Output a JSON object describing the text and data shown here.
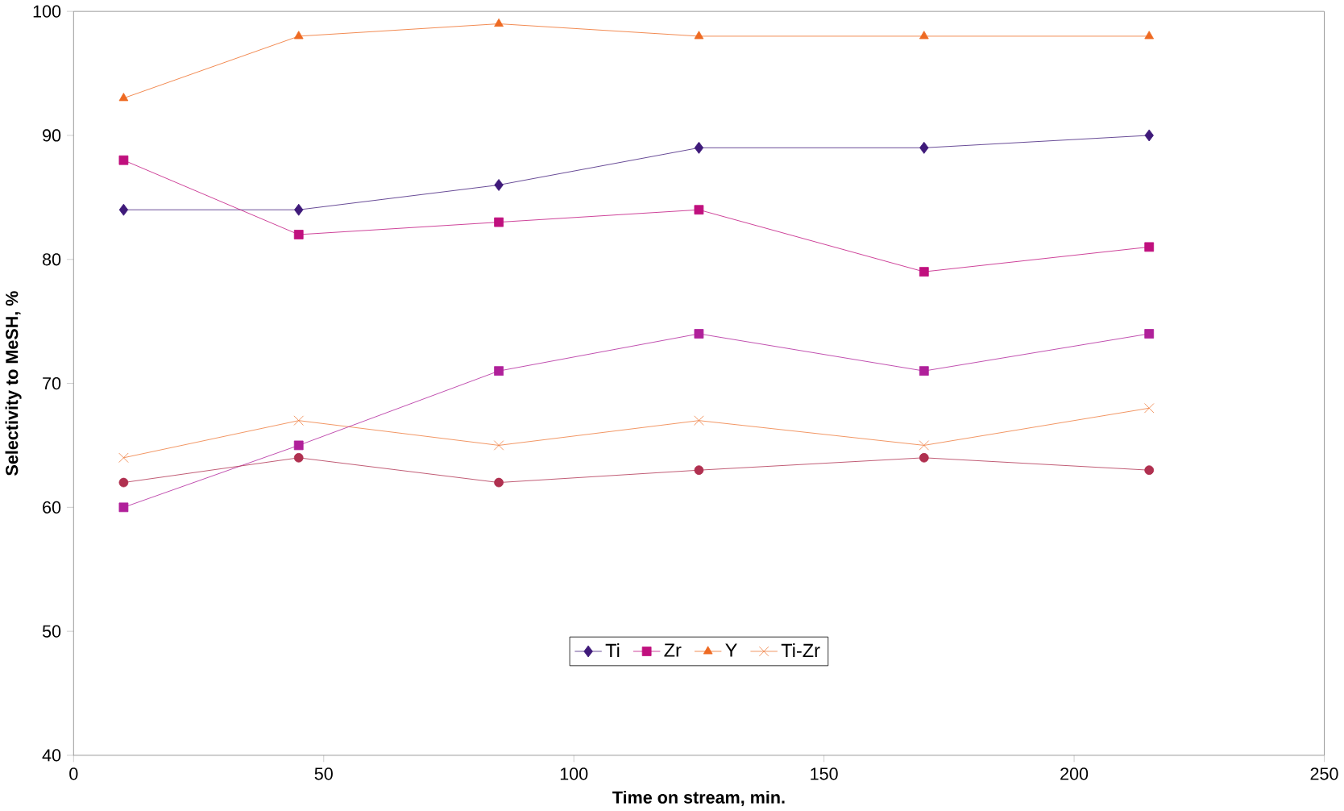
{
  "chart_data": {
    "type": "line",
    "xlabel": "Time on stream, min.",
    "ylabel": "Selectivity to MeSH, %",
    "x": [
      10,
      45,
      85,
      125,
      170,
      215
    ],
    "xlim": [
      0,
      250
    ],
    "xticks": [
      0,
      50,
      100,
      150,
      200,
      250
    ],
    "ylim": [
      40,
      100
    ],
    "yticks": [
      40,
      50,
      60,
      70,
      80,
      90,
      100
    ],
    "grid": false,
    "legend": "bottom",
    "line_style": "solid",
    "series": [
      {
        "name": "Ti",
        "color": "#3f1a7a",
        "marker": "diamond",
        "values": [
          84,
          84,
          86,
          89,
          89,
          90
        ]
      },
      {
        "name": "Zr",
        "color": "#c0107e",
        "marker": "square",
        "values": [
          88,
          82,
          83,
          84,
          79,
          81
        ]
      },
      {
        "name": "Y",
        "color": "#ee6a22",
        "marker": "triangle",
        "values": [
          93,
          98,
          99,
          98,
          98,
          98
        ]
      },
      {
        "name": "Ti-Zr",
        "color": "#ee7a3a",
        "marker": "cross",
        "values": [
          64,
          67,
          65,
          67,
          65,
          68
        ]
      },
      {
        "color": "#b0209a",
        "marker": "square",
        "values": [
          60,
          65,
          71,
          74,
          71,
          74
        ]
      },
      {
        "color": "#b03050",
        "marker": "circle",
        "values": [
          62,
          64,
          62,
          63,
          64,
          63
        ]
      }
    ]
  }
}
